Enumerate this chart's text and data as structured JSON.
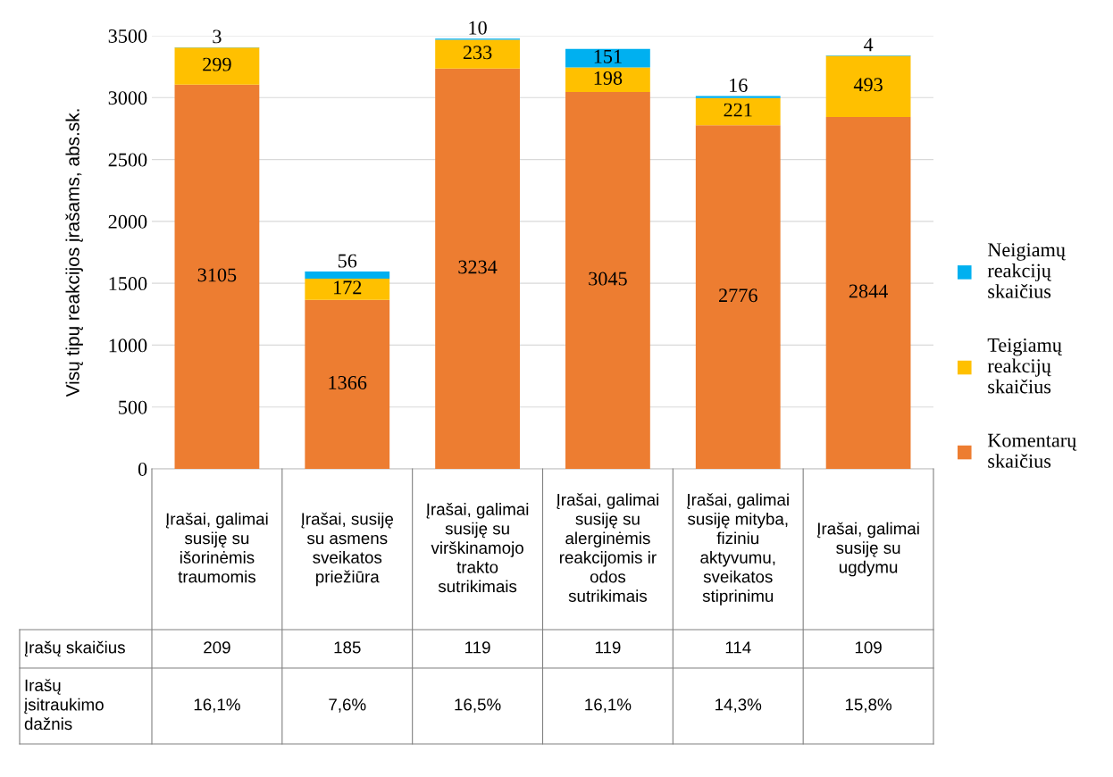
{
  "chart_data": {
    "type": "bar",
    "stacked": true,
    "ylabel": "Visų tipų reakcijos įrašams, abs.sk.",
    "categories": [
      "Įrašai, galimai\nsusiję su\nišorinėmis\ntraumomis",
      "Įrašai, susiję\nsu asmens\nsveikatos\npriežiūra",
      "Įrašai, galimai\nsusiję su\nvirškinamojo\ntrakto\nsutrikimais",
      "Įrašai, galimai\nsusiję su\nalerginėmis\nreakcijomis ir\nodos\nsutrikimais",
      "Įrašai, galimai\nsusiję mityba,\nfiziniu\naktyvumu,\nsveikatos\nstiprinimu",
      "Įrašai, galimai\nsusiję su\nugdymu"
    ],
    "series": [
      {
        "name": "Komentarų\nskaičius",
        "color": "#ed7d31",
        "values": [
          3105,
          1366,
          3234,
          3045,
          2776,
          2844
        ]
      },
      {
        "name": "Teigiamų\nreakcijų\nskaičius",
        "color": "#ffc000",
        "values": [
          299,
          172,
          233,
          198,
          221,
          493
        ]
      },
      {
        "name": "Neigiamų\nreakcijų\nskaičius",
        "color": "#00b0f0",
        "values": [
          3,
          56,
          10,
          151,
          16,
          4
        ]
      }
    ],
    "ylim": [
      0,
      3500
    ],
    "yticks": [
      0,
      500,
      1000,
      1500,
      2000,
      2500,
      3000,
      3500
    ],
    "grid": "y",
    "legend": "right",
    "data_labels": true,
    "annotations": [
      "Įrašų skaičius",
      "209",
      "185",
      "119",
      "119",
      "114",
      "109",
      "Irašų\nįsitraukimo\ndažnis",
      "16,1%",
      "7,6%",
      "16,5%",
      "16,1%",
      "14,3%",
      "15,8%"
    ]
  }
}
